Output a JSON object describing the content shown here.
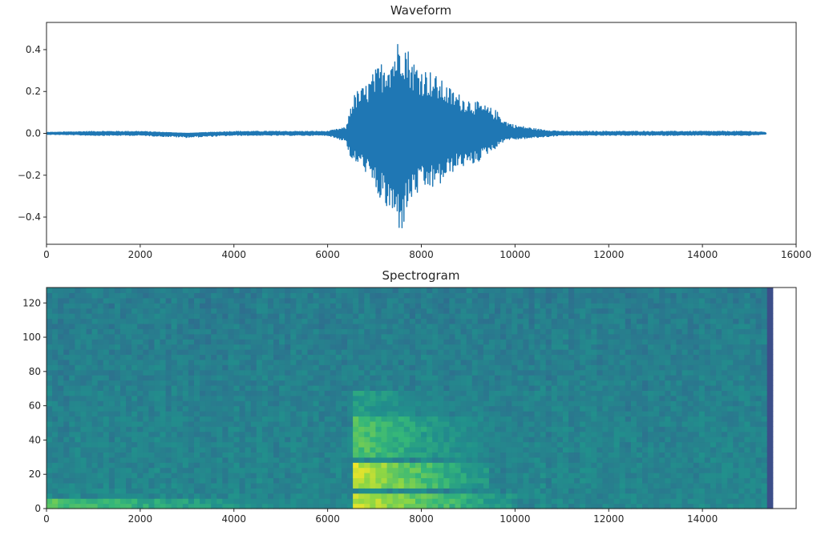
{
  "chart_data": [
    {
      "type": "line",
      "title": "Waveform",
      "xlabel": "",
      "ylabel": "",
      "xlim": [
        0,
        16000
      ],
      "ylim": [
        -0.53,
        0.53
      ],
      "x_ticks": [
        "0",
        "2000",
        "4000",
        "6000",
        "8000",
        "10000",
        "12000",
        "14000",
        "16000"
      ],
      "y_ticks": [
        "0.4",
        "0.2",
        "0.0",
        "−0.2",
        "−0.4"
      ],
      "grid": false,
      "color": "#1f77b4",
      "series": [
        {
          "x": [
            0,
            1000,
            2000,
            3000,
            4000,
            5000,
            6000,
            6400,
            6500,
            6600,
            6800,
            7000,
            7200,
            7400,
            7500,
            7600,
            7700,
            7800,
            8000,
            8200,
            8400,
            8600,
            8800,
            9000,
            9200,
            9400,
            9600,
            9800,
            10000,
            10500,
            11000,
            12000,
            13000,
            14000,
            15000,
            15360
          ],
          "max": [
            0.005,
            0.01,
            0.01,
            0.0,
            0.01,
            0.01,
            0.01,
            0.03,
            0.15,
            0.2,
            0.23,
            0.3,
            0.36,
            0.4,
            0.45,
            0.49,
            0.42,
            0.36,
            0.32,
            0.3,
            0.26,
            0.22,
            0.19,
            0.17,
            0.15,
            0.13,
            0.11,
            0.06,
            0.04,
            0.02,
            0.01,
            0.01,
            0.01,
            0.01,
            0.01,
            0.005
          ],
          "min": [
            -0.005,
            -0.01,
            -0.01,
            -0.02,
            -0.01,
            -0.01,
            -0.01,
            -0.04,
            -0.15,
            -0.14,
            -0.18,
            -0.28,
            -0.35,
            -0.42,
            -0.46,
            -0.47,
            -0.38,
            -0.32,
            -0.28,
            -0.27,
            -0.25,
            -0.2,
            -0.16,
            -0.16,
            -0.14,
            -0.1,
            -0.07,
            -0.03,
            -0.03,
            -0.02,
            -0.01,
            -0.01,
            -0.01,
            -0.01,
            -0.01,
            -0.005
          ]
        }
      ]
    },
    {
      "type": "heatmap",
      "title": "Spectrogram",
      "xlabel": "",
      "ylabel": "",
      "xlim": [
        0,
        16000
      ],
      "ylim": [
        0,
        129
      ],
      "data_x_max": 15500,
      "x_ticks": [
        "0",
        "2000",
        "4000",
        "6000",
        "8000",
        "10000",
        "12000",
        "14000"
      ],
      "y_ticks": [
        "120",
        "100",
        "80",
        "60",
        "40",
        "20",
        "0"
      ],
      "colormap": "viridis",
      "energy_regions": [
        {
          "x": [
            6500,
            10000
          ],
          "y": [
            0,
            8
          ],
          "level": "high"
        },
        {
          "x": [
            6500,
            9500
          ],
          "y": [
            12,
            28
          ],
          "level": "high"
        },
        {
          "x": [
            6500,
            10000
          ],
          "y": [
            30,
            55
          ],
          "level": "medium-high"
        },
        {
          "x": [
            6500,
            10000
          ],
          "y": [
            55,
            68
          ],
          "level": "medium"
        },
        {
          "x": [
            0,
            6500
          ],
          "y": [
            0,
            5
          ],
          "level": "medium-high"
        }
      ]
    }
  ]
}
